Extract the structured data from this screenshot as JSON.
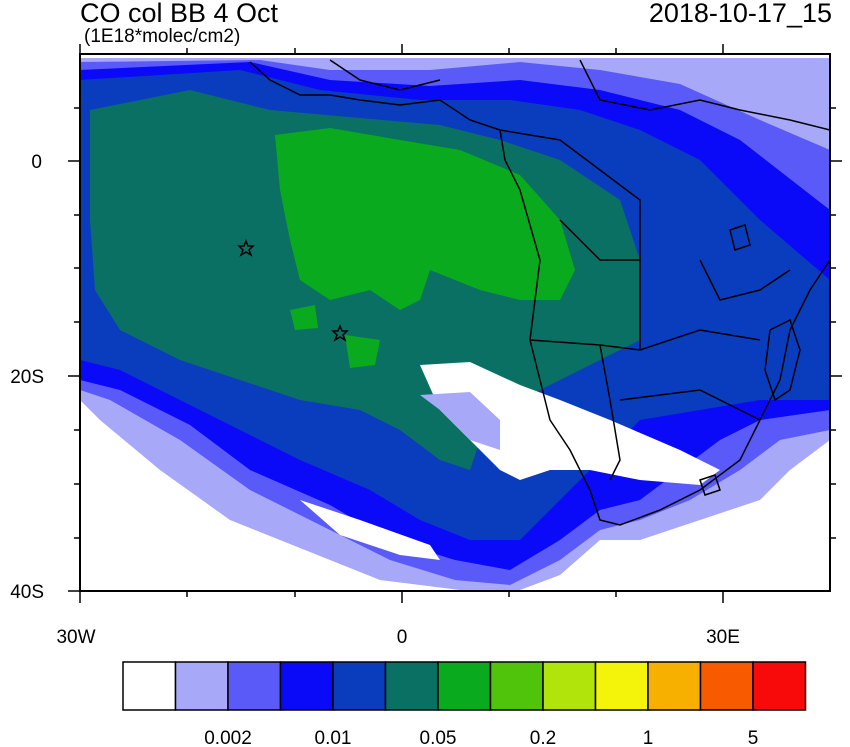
{
  "title": "CO col BB 4 Oct",
  "units": "(1E18*molec/cm2)",
  "timestamp": "2018-10-17_15",
  "map": {
    "lon_range": [
      -30,
      40
    ],
    "lat_range": [
      -40,
      10
    ],
    "lon_ticks": [
      {
        "value": -30,
        "label": "30W"
      },
      {
        "value": 0,
        "label": "0"
      },
      {
        "value": 30,
        "label": "30E"
      }
    ],
    "lat_ticks": [
      {
        "value": 0,
        "label": "0"
      },
      {
        "value": -20,
        "label": "20S"
      },
      {
        "value": -40,
        "label": "40S"
      }
    ],
    "markers": [
      {
        "type": "star",
        "lon": -14.4,
        "lat": -8.0
      },
      {
        "type": "star",
        "lon": -5.7,
        "lat": -15.9
      }
    ]
  },
  "colorbar": {
    "colors": [
      "#ffffff",
      "#a8a8f8",
      "#5a5af8",
      "#0a0af8",
      "#0a3cbe",
      "#0a7064",
      "#0aaa1e",
      "#50c40a",
      "#b0e40a",
      "#f4f40a",
      "#f8b000",
      "#f85a00",
      "#f80a0a"
    ],
    "labels": [
      "0.002",
      "0.01",
      "0.05",
      "0.2",
      "1",
      "5"
    ],
    "label_positions": [
      2,
      4,
      6,
      8,
      10,
      12
    ]
  },
  "colors": {
    "ocean_low": "#a8a8f8",
    "mid": "#0a3cbe",
    "high": "#0a7064",
    "highest": "#0aaa1e",
    "borders": "#000000"
  }
}
